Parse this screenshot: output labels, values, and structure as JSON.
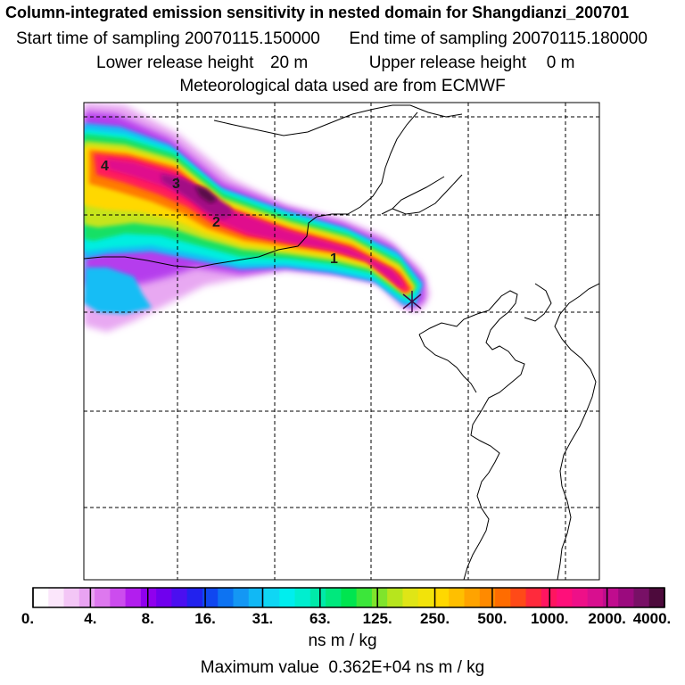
{
  "title": "Column-integrated emission sensitivity in nested domain for Shangdianzi_200701",
  "sampling": {
    "start_label": "Start time of sampling",
    "start_value": "20070115.150000",
    "end_label": "End time of sampling",
    "end_value": "20070115.180000"
  },
  "release": {
    "lower_label": "Lower release height",
    "lower_value": "20 m",
    "upper_label": "Upper release height",
    "upper_value": "0 m"
  },
  "meteo_note": "Meteorological data used are from ECMWF",
  "plume_labels": [
    "1",
    "2",
    "3",
    "4"
  ],
  "colorbar": {
    "tick_labels": [
      "0.",
      "4.",
      "8.",
      "16.",
      "31.",
      "63.",
      "125.",
      "250.",
      "500.",
      "1000.",
      "2000.",
      "4000."
    ],
    "units": "ns m / kg",
    "colors": [
      "#ffffff",
      "#fbe6fb",
      "#f3c6f6",
      "#e9a3f2",
      "#dd78ee",
      "#cc4cee",
      "#b21eee",
      "#9000ee",
      "#7000ee",
      "#4b0ff0",
      "#2222ee",
      "#1047f0",
      "#0d73f2",
      "#1497f4",
      "#11b8f5",
      "#0fd6f4",
      "#00eeee",
      "#00eecf",
      "#00eaa9",
      "#00e87d",
      "#00e54f",
      "#3ce63a",
      "#7fe42c",
      "#b7e51d",
      "#dfe516",
      "#f2e30a",
      "#ffd800",
      "#ffbf00",
      "#ffa300",
      "#ff8a00",
      "#ff6c00",
      "#ff4a18",
      "#ff2a3c",
      "#ff1560",
      "#ff0f7a",
      "#ee1088",
      "#d80f8f",
      "#c00c8e",
      "#9b0a7e",
      "#781066",
      "#4d0a3c"
    ]
  },
  "max_value_label": "Maximum value",
  "max_value": "0.362E+04",
  "max_value_units": "ns m / kg",
  "accent_colors": {
    "receptor": "#3a0a4a",
    "grid": "#000000"
  }
}
